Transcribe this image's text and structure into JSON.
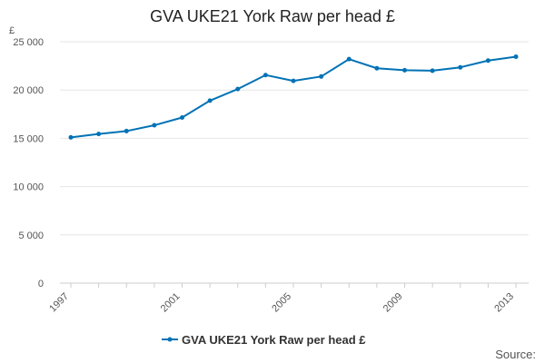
{
  "chart_data": {
    "type": "line",
    "title": "GVA UKE21 York Raw per head £",
    "ylabel": "£",
    "xlabel": "",
    "x": [
      1997,
      1998,
      1999,
      2000,
      2001,
      2002,
      2003,
      2004,
      2005,
      2006,
      2007,
      2008,
      2009,
      2010,
      2011,
      2012,
      2013
    ],
    "series": [
      {
        "name": "GVA UKE21 York Raw per head £",
        "color": "#0072b5",
        "values": [
          15100,
          15450,
          15750,
          16350,
          17150,
          18900,
          20100,
          21550,
          20950,
          21400,
          23200,
          22250,
          22050,
          22000,
          22350,
          23050,
          23450
        ]
      }
    ],
    "x_tick_labels": [
      "1997",
      "2001",
      "2005",
      "2009",
      "2013"
    ],
    "x_tick_values": [
      1997,
      2001,
      2005,
      2009,
      2013
    ],
    "y_tick_labels": [
      "0",
      "5 000",
      "10 000",
      "15 000",
      "20 000",
      "25 000"
    ],
    "y_tick_values": [
      0,
      5000,
      10000,
      15000,
      20000,
      25000
    ],
    "ylim": [
      0,
      25000
    ],
    "xlim": [
      1997,
      2013
    ],
    "grid": true,
    "legend": "bottom-center",
    "source": "Source:"
  }
}
